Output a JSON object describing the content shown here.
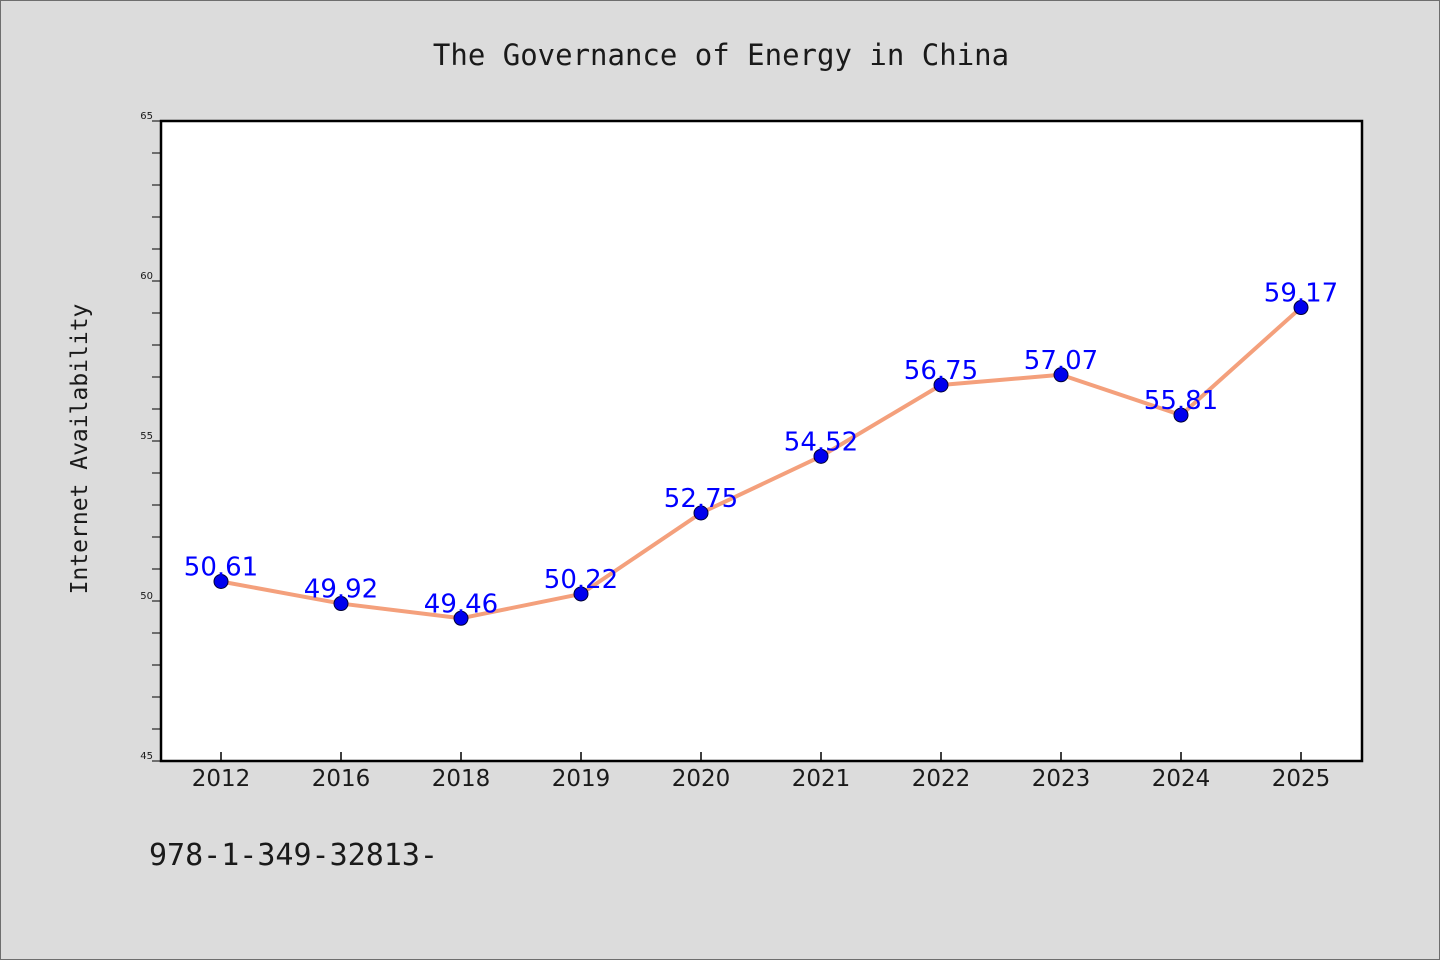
{
  "footer_text": "978-1-349-32813-",
  "chart_data": {
    "type": "line",
    "title": "The Governance of Energy in China",
    "xlabel": "",
    "ylabel": "Internet Availability",
    "categories": [
      "2012",
      "2016",
      "2018",
      "2019",
      "2020",
      "2021",
      "2022",
      "2023",
      "2024",
      "2025"
    ],
    "values": [
      50.61,
      49.92,
      49.46,
      50.22,
      52.75,
      54.52,
      56.75,
      57.07,
      55.81,
      59.17
    ],
    "data_labels": [
      "50.61",
      "49.92",
      "49.46",
      "50.22",
      "52.75",
      "54.52",
      "56.75",
      "57.07",
      "55.81",
      "59.17"
    ],
    "ylim": [
      45,
      65
    ],
    "y_major_ticks": [
      45,
      50,
      55,
      60,
      65
    ],
    "y_minor_step": 1,
    "grid": false,
    "legend": "none",
    "colors": {
      "background": "#dcdcdc",
      "plot_area": "#ffffff",
      "line": "#f4a07c",
      "marker": "#0000ee",
      "data_label": "#0000ff",
      "text": "#1a1a1a"
    }
  }
}
